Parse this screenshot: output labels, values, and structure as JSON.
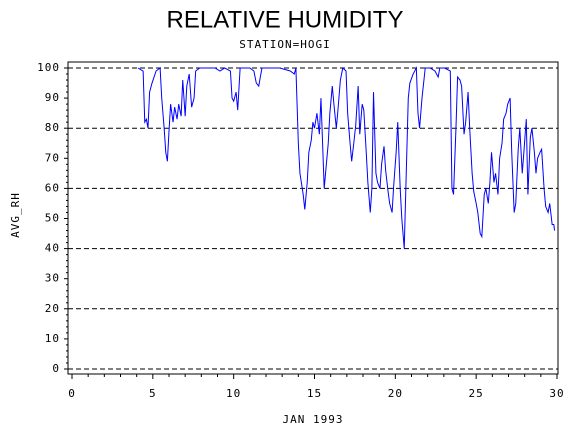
{
  "chart_data": {
    "type": "line",
    "title": "RELATIVE HUMIDITY",
    "subtitle": "STATION=HOGI",
    "xlabel": "JAN 1993",
    "ylabel": "AVG_RH",
    "color": "#0000ff",
    "grid": true,
    "xlim": [
      0,
      30
    ],
    "xticks": [
      0,
      5,
      10,
      15,
      20,
      25,
      30
    ],
    "ylim": [
      0,
      100
    ],
    "yticks": [
      0,
      10,
      20,
      30,
      40,
      50,
      60,
      70,
      80,
      90,
      100
    ],
    "x": [
      4.08,
      4.4,
      4.5,
      4.6,
      4.7,
      4.8,
      4.95,
      5.2,
      5.45,
      5.55,
      5.7,
      5.8,
      5.9,
      6.0,
      6.1,
      6.25,
      6.35,
      6.5,
      6.6,
      6.75,
      6.85,
      7.0,
      7.1,
      7.25,
      7.4,
      7.55,
      7.65,
      7.9,
      8.2,
      8.85,
      9.15,
      9.45,
      9.8,
      9.9,
      10.0,
      10.15,
      10.25,
      10.4,
      10.7,
      11.0,
      11.25,
      11.4,
      11.55,
      11.75,
      12.0,
      12.85,
      13.5,
      13.75,
      13.85,
      14.0,
      14.1,
      14.3,
      14.4,
      14.55,
      14.65,
      14.8,
      14.9,
      15.0,
      15.15,
      15.3,
      15.4,
      15.5,
      15.6,
      15.7,
      15.85,
      15.95,
      16.1,
      16.2,
      16.35,
      16.45,
      16.6,
      16.75,
      16.95,
      17.05,
      17.2,
      17.3,
      17.45,
      17.55,
      17.7,
      17.8,
      17.95,
      18.05,
      18.2,
      18.3,
      18.45,
      18.55,
      18.65,
      18.8,
      18.9,
      19.05,
      19.15,
      19.3,
      19.4,
      19.55,
      19.65,
      19.8,
      19.9,
      20.05,
      20.15,
      20.3,
      20.4,
      20.55,
      20.65,
      20.8,
      20.9,
      21.1,
      21.3,
      21.4,
      21.5,
      21.65,
      21.85,
      22.15,
      22.45,
      22.65,
      22.75,
      23.05,
      23.4,
      23.5,
      23.6,
      23.75,
      23.85,
      24.0,
      24.1,
      24.25,
      24.35,
      24.5,
      24.6,
      24.75,
      24.85,
      25.0,
      25.1,
      25.25,
      25.35,
      25.5,
      25.6,
      25.75,
      25.85,
      25.95,
      26.1,
      26.2,
      26.35,
      26.45,
      26.6,
      26.7,
      26.85,
      26.95,
      27.1,
      27.2,
      27.35,
      27.45,
      27.6,
      27.7,
      27.85,
      27.95,
      28.1,
      28.2,
      28.35,
      28.45,
      28.6,
      28.7,
      28.8,
      28.95,
      29.05,
      29.2,
      29.3,
      29.45,
      29.55,
      29.7,
      29.8,
      29.85
    ],
    "values": [
      100,
      99,
      82,
      83,
      80,
      92,
      95,
      99,
      100,
      90,
      80,
      72,
      69,
      79,
      88,
      82,
      87,
      83,
      88,
      84,
      96,
      84,
      94,
      98,
      87,
      90,
      99,
      100,
      100,
      100,
      99,
      100,
      99,
      90,
      89,
      92,
      86,
      100,
      100,
      100,
      99,
      95,
      94,
      100,
      100,
      100,
      99,
      98,
      100,
      75,
      65,
      58,
      53,
      62,
      72,
      76,
      82,
      80,
      85,
      78,
      90,
      75,
      60,
      66,
      75,
      85,
      94,
      88,
      80,
      86,
      96,
      100,
      99,
      85,
      75,
      69,
      76,
      81,
      94,
      78,
      88,
      86,
      72,
      62,
      52,
      60,
      92,
      65,
      62,
      60,
      68,
      74,
      66,
      59,
      55,
      52,
      61,
      72,
      82,
      60,
      50,
      40,
      60,
      90,
      95,
      98,
      100,
      85,
      80,
      90,
      100,
      100,
      99,
      97,
      100,
      100,
      99,
      60,
      58,
      80,
      97,
      96,
      94,
      78,
      82,
      92,
      80,
      65,
      59,
      55,
      52,
      45,
      44,
      58,
      60,
      55,
      62,
      72,
      62,
      65,
      58,
      70,
      75,
      83,
      85,
      88,
      90,
      72,
      52,
      55,
      73,
      80,
      65,
      72,
      83,
      58,
      77,
      80,
      72,
      65,
      70,
      72,
      73,
      60,
      54,
      52,
      55,
      48,
      48,
      46
    ]
  }
}
